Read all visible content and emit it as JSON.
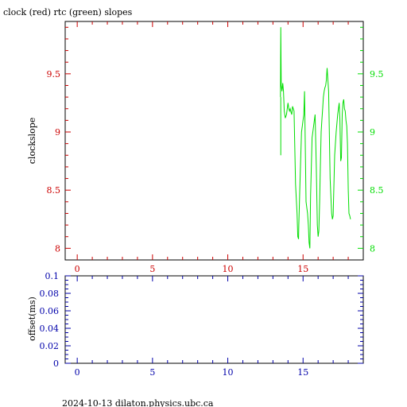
{
  "title": "clock (red) rtc (green) slopes",
  "footer": "2024-10-13 dilaton.physics.ubc.ca",
  "colors": {
    "red": "#cc0000",
    "green": "#00dd00",
    "blue": "#0000aa",
    "black": "#000000"
  },
  "chart_data": [
    {
      "type": "line",
      "ylabel": "clockslope",
      "xlim": [
        -0.8,
        19.0
      ],
      "ylim": [
        7.9,
        9.95
      ],
      "x_ticks": [
        "0",
        "5",
        "10",
        "15"
      ],
      "y_ticks_left": [
        "8",
        "8.5",
        "9",
        "9.5"
      ],
      "y_ticks_right": [
        "8",
        "8.5",
        "9",
        "9.5"
      ],
      "series": [
        {
          "color": "green",
          "x": [
            13.5,
            13.52,
            13.55,
            13.6,
            13.65,
            13.7,
            13.75,
            13.82,
            13.9,
            14.0,
            14.05,
            14.1,
            14.15,
            14.2,
            14.25,
            14.3,
            14.4,
            14.5,
            14.6,
            14.65,
            14.7,
            14.72,
            14.78,
            14.85,
            14.9,
            14.95,
            15.0,
            15.05,
            15.1,
            15.2,
            15.3,
            15.35,
            15.4,
            15.45,
            15.5,
            15.6,
            15.7,
            15.8,
            15.88,
            15.95,
            16.0,
            16.05,
            16.1,
            16.15,
            16.2,
            16.25,
            16.3,
            16.35,
            16.4,
            16.45,
            16.5,
            16.55,
            16.6,
            16.7,
            16.8,
            16.9,
            16.95,
            17.0,
            17.1,
            17.2,
            17.3,
            17.4,
            17.45,
            17.5,
            17.55,
            17.6,
            17.65,
            17.7,
            17.75,
            17.8,
            17.85,
            17.9,
            17.95,
            18.0,
            18.05,
            18.1,
            18.15
          ],
          "y": [
            9.3,
            9.9,
            9.4,
            9.35,
            9.42,
            9.35,
            9.18,
            9.12,
            9.15,
            9.25,
            9.2,
            9.18,
            9.2,
            9.17,
            9.15,
            9.22,
            9.18,
            8.55,
            8.3,
            8.1,
            8.08,
            8.2,
            8.5,
            8.8,
            9.0,
            9.05,
            9.1,
            9.15,
            9.35,
            8.4,
            8.3,
            8.2,
            8.05,
            8.0,
            8.45,
            8.95,
            9.05,
            9.15,
            8.7,
            8.2,
            8.1,
            8.15,
            8.4,
            8.7,
            9.0,
            9.1,
            9.2,
            9.3,
            9.35,
            9.38,
            9.4,
            9.45,
            9.55,
            9.35,
            8.6,
            8.3,
            8.25,
            8.28,
            8.8,
            9.0,
            9.15,
            9.25,
            9.1,
            8.75,
            8.78,
            9.15,
            9.25,
            9.28,
            9.2,
            9.18,
            9.1,
            9.05,
            8.9,
            8.5,
            8.3,
            8.28,
            8.25
          ]
        },
        {
          "color": "green",
          "x": [
            13.52,
            13.52
          ],
          "y": [
            8.8,
            9.3
          ]
        }
      ]
    },
    {
      "type": "line",
      "ylabel": "offset(ms)",
      "xlim": [
        -0.8,
        19.0
      ],
      "ylim": [
        0,
        0.1
      ],
      "x_ticks": [
        "0",
        "5",
        "10",
        "15"
      ],
      "y_ticks_left": [
        "0",
        "0.02",
        "0.04",
        "0.06",
        "0.08",
        "0.1"
      ],
      "series": []
    }
  ]
}
